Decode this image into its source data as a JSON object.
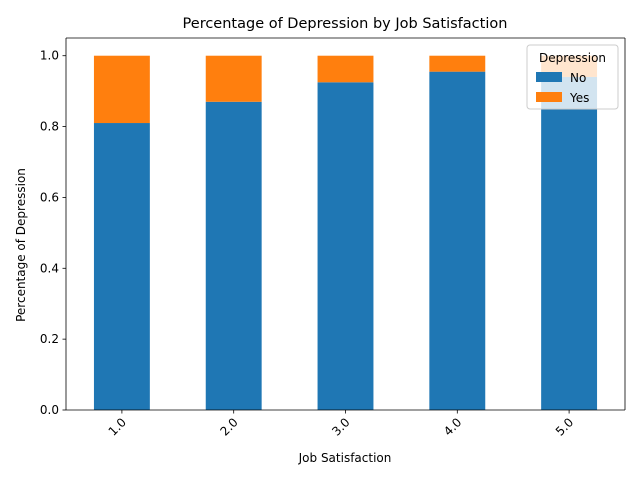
{
  "chart_data": {
    "type": "bar",
    "stacked": true,
    "title": "Percentage of Depression by Job Satisfaction",
    "xlabel": "Job Satisfaction",
    "ylabel": "Percentage of Depression",
    "categories": [
      "1.0",
      "2.0",
      "3.0",
      "4.0",
      "5.0"
    ],
    "series": [
      {
        "name": "No",
        "color": "#1f77b4",
        "values": [
          0.81,
          0.87,
          0.925,
          0.955,
          0.94
        ]
      },
      {
        "name": "Yes",
        "color": "#ff7f0e",
        "values": [
          0.19,
          0.13,
          0.075,
          0.045,
          0.06
        ]
      }
    ],
    "ylim": [
      0,
      1.05
    ],
    "yticks": [
      "0.0",
      "0.2",
      "0.4",
      "0.6",
      "0.8",
      "1.0"
    ],
    "x_tick_rotation": 45,
    "grid": false,
    "legend": {
      "title": "Depression",
      "placement": "top-right"
    }
  }
}
